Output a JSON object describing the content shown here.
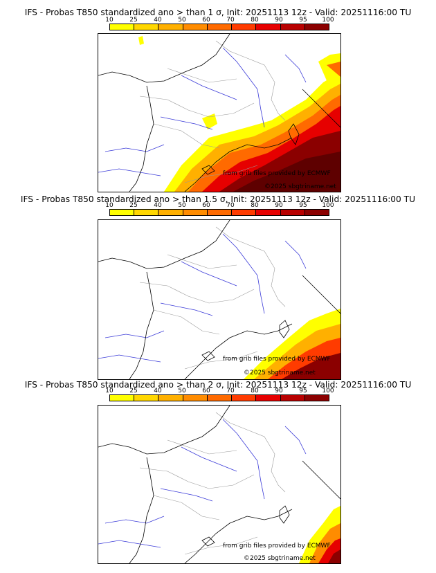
{
  "colorbar": {
    "ticks": [
      "10",
      "25",
      "40",
      "50",
      "60",
      "70",
      "80",
      "90",
      "95",
      "100"
    ],
    "colors": [
      "#ffff00",
      "#ffd700",
      "#ffb000",
      "#ff8c00",
      "#ff6a00",
      "#ff3b00",
      "#e60000",
      "#b80000",
      "#8b0000",
      "#5e0000"
    ]
  },
  "panels": [
    {
      "title": "IFS - Probas T850  standardized ano > than 1 σ, Init: 20251113 12z - Valid: 20251116:00 TU",
      "credit": "from grib files provided by ECMWF",
      "copyright": "©2025 sbgtriname.net"
    },
    {
      "title": "IFS - Probas T850  standardized ano > than 1.5 σ, Init: 20251113 12z - Valid: 20251116:00 TU",
      "credit": "from grib files provided by ECMWF",
      "copyright": "©2025 sbgtriname.net"
    },
    {
      "title": "IFS - Probas T850  standardized ano > than 2 σ, Init: 20251113 12z - Valid: 20251116:00 TU",
      "credit": "from grib files provided by ECMWF",
      "copyright": "©2025 sbgtriname.net"
    }
  ]
}
